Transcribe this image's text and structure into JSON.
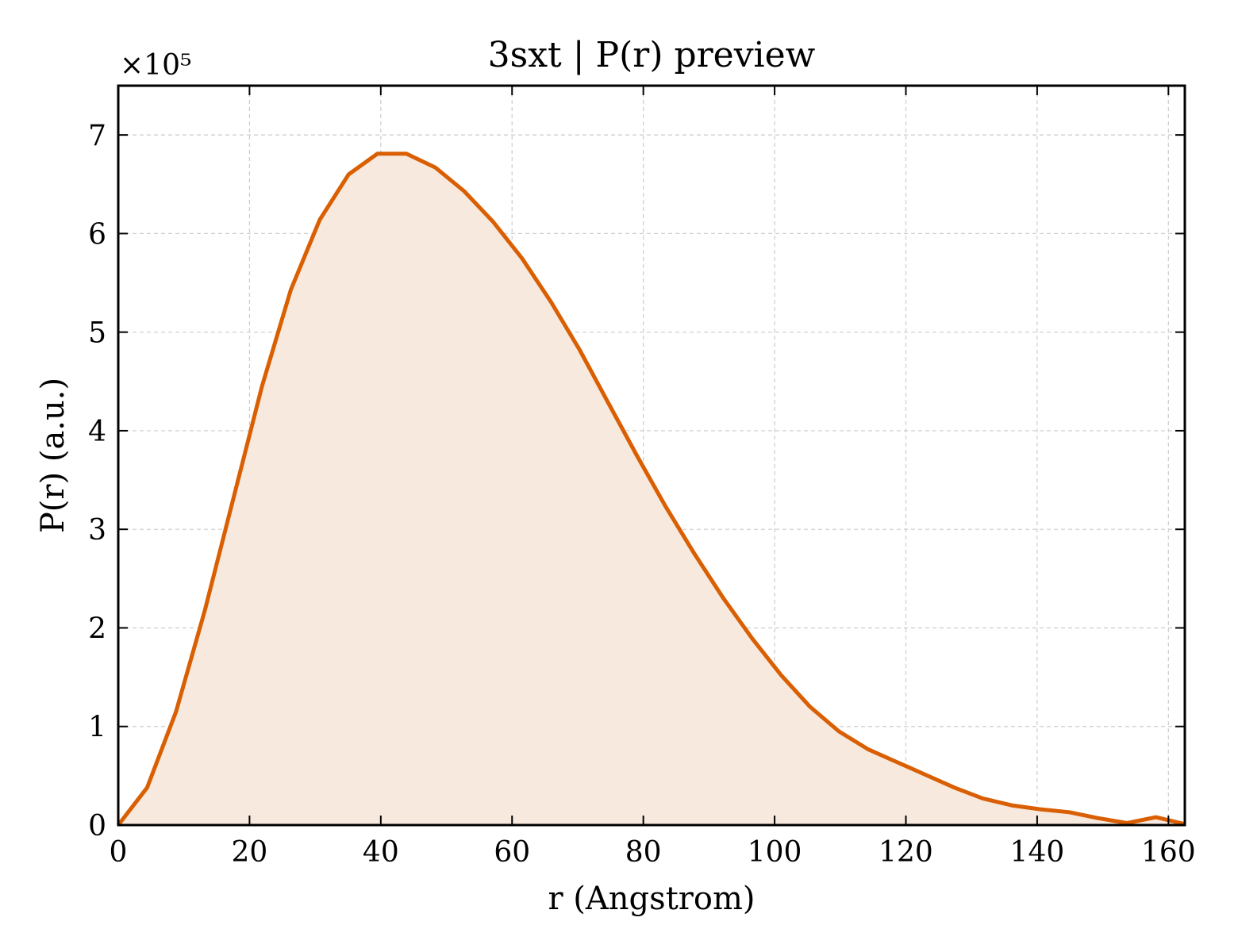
{
  "chart_data": {
    "type": "area",
    "title": "3sxt | P(r) preview",
    "xlabel": "r (Angstrom)",
    "ylabel": "P(r) (a.u.)",
    "y_multiplier_label": "×10⁵",
    "y_scale": 100000,
    "xlim": [
      0,
      162.5
    ],
    "ylim": [
      0,
      7.5
    ],
    "x_ticks": [
      0,
      20,
      40,
      60,
      80,
      100,
      120,
      140,
      160
    ],
    "y_ticks": [
      0,
      1,
      2,
      3,
      4,
      5,
      6,
      7
    ],
    "grid": true,
    "legend": "none",
    "line_color": "#d95f02",
    "fill_color": "#f8e9df",
    "series": [
      {
        "x": [
          0.0,
          4.4,
          8.8,
          13.2,
          17.6,
          21.9,
          26.3,
          30.7,
          35.1,
          39.5,
          43.9,
          48.3,
          52.7,
          57.1,
          61.5,
          65.9,
          70.3,
          74.6,
          79.0,
          83.4,
          87.8,
          92.2,
          96.6,
          101.0,
          105.4,
          109.8,
          114.2,
          118.6,
          123.0,
          127.4,
          131.7,
          136.1,
          140.5,
          144.9,
          149.3,
          153.7,
          158.1,
          162.5
        ],
        "values": [
          0.0,
          0.38,
          1.15,
          2.18,
          3.33,
          4.45,
          5.43,
          6.14,
          6.6,
          6.81,
          6.81,
          6.67,
          6.43,
          6.12,
          5.75,
          5.31,
          4.82,
          4.29,
          3.75,
          3.23,
          2.75,
          2.3,
          1.89,
          1.52,
          1.2,
          0.95,
          0.77,
          0.64,
          0.51,
          0.38,
          0.27,
          0.2,
          0.16,
          0.13,
          0.07,
          0.02,
          0.08,
          0.01
        ]
      }
    ]
  }
}
